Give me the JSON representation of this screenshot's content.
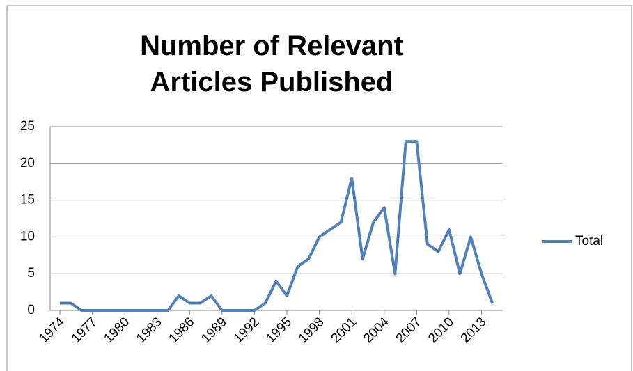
{
  "chart_data": {
    "type": "line",
    "title": "Number of Relevant Articles Published",
    "x": [
      1974,
      1975,
      1976,
      1977,
      1978,
      1979,
      1980,
      1981,
      1982,
      1983,
      1984,
      1985,
      1986,
      1987,
      1988,
      1989,
      1990,
      1991,
      1992,
      1993,
      1994,
      1995,
      1996,
      1997,
      1998,
      1999,
      2000,
      2001,
      2002,
      2003,
      2004,
      2005,
      2006,
      2007,
      2008,
      2009,
      2010,
      2011,
      2012,
      2013,
      2014
    ],
    "series": [
      {
        "name": "Total",
        "color": "#4f81bd",
        "values": [
          1,
          1,
          0,
          0,
          0,
          0,
          0,
          0,
          0,
          0,
          0,
          2,
          1,
          1,
          2,
          0,
          0,
          0,
          0,
          1,
          4,
          2,
          6,
          7,
          10,
          11,
          12,
          18,
          7,
          12,
          14,
          5,
          23,
          23,
          9,
          8,
          11,
          5,
          10,
          5,
          1
        ]
      }
    ],
    "xlim": [
      1974,
      2014
    ],
    "xticks": [
      1974,
      1977,
      1980,
      1983,
      1986,
      1989,
      1992,
      1995,
      1998,
      2001,
      2004,
      2007,
      2010,
      2013
    ],
    "ylim": [
      0,
      25
    ],
    "yticks": [
      0,
      5,
      10,
      15,
      20,
      25
    ],
    "grid": true,
    "legend": "right"
  }
}
